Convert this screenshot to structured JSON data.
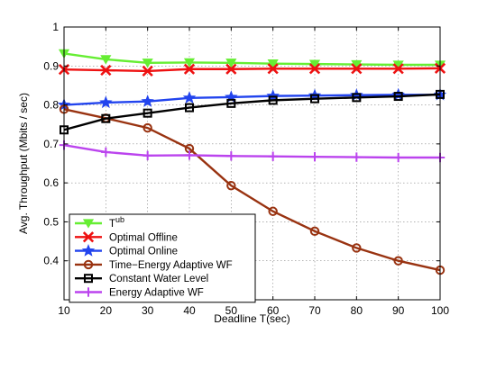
{
  "chart_data": {
    "type": "line",
    "xlabel": "Deadline T(sec)",
    "ylabel": "Avg. Throughput (Mbits / sec)",
    "xlim": [
      10,
      100
    ],
    "ylim": [
      0.3,
      1.0
    ],
    "xticks": [
      "10",
      "20",
      "30",
      "40",
      "50",
      "60",
      "70",
      "80",
      "90",
      "100"
    ],
    "yticks": [
      "0.4",
      "0.5",
      "0.6",
      "0.7",
      "0.8",
      "0.9",
      "1"
    ],
    "grid": true,
    "legend_position": "bottom-left",
    "x": [
      10,
      20,
      30,
      40,
      50,
      60,
      70,
      80,
      90,
      100
    ],
    "series": [
      {
        "name": "T",
        "name_sup": "ub",
        "color": "#66ee33",
        "marker": "triangle-down",
        "values": [
          0.932,
          0.917,
          0.908,
          0.909,
          0.908,
          0.906,
          0.905,
          0.904,
          0.903,
          0.903
        ]
      },
      {
        "name": "Optimal Offline",
        "color": "#ee1111",
        "marker": "x",
        "values": [
          0.891,
          0.889,
          0.887,
          0.892,
          0.892,
          0.893,
          0.893,
          0.893,
          0.893,
          0.894
        ]
      },
      {
        "name": "Optimal Online",
        "color": "#2244ee",
        "marker": "star",
        "values": [
          0.8,
          0.806,
          0.809,
          0.818,
          0.82,
          0.823,
          0.824,
          0.825,
          0.826,
          0.826
        ]
      },
      {
        "name": "Time−Energy Adaptive WF",
        "color": "#993311",
        "marker": "circle",
        "values": [
          0.789,
          0.766,
          0.741,
          0.688,
          0.593,
          0.527,
          0.476,
          0.433,
          0.4,
          0.376
        ]
      },
      {
        "name": "Constant Water Level",
        "color": "#000000",
        "marker": "square",
        "values": [
          0.736,
          0.765,
          0.779,
          0.793,
          0.804,
          0.812,
          0.816,
          0.819,
          0.822,
          0.827
        ]
      },
      {
        "name": "Energy Adaptive WF",
        "color": "#bb44ee",
        "marker": "plus",
        "values": [
          0.697,
          0.679,
          0.67,
          0.671,
          0.669,
          0.668,
          0.667,
          0.666,
          0.665,
          0.665
        ]
      }
    ]
  }
}
